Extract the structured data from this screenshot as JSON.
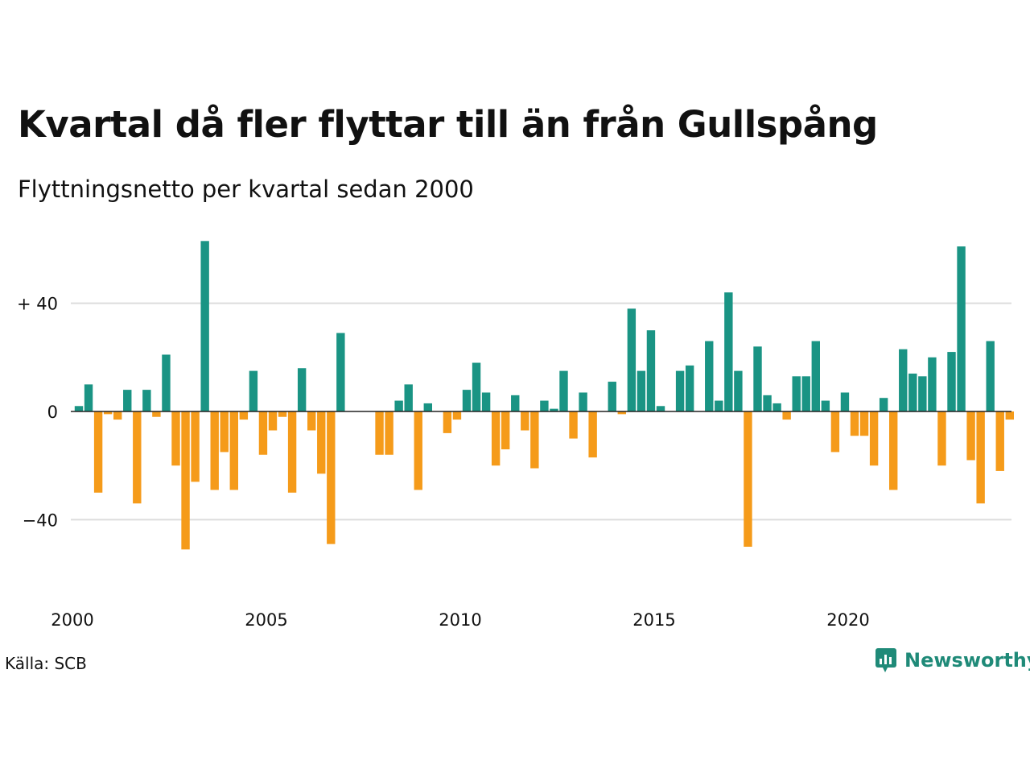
{
  "title": "Kvartal då fler flyttar till än från Gullspång",
  "subtitle": "Flyttningsnetto per kvartal sedan 2000",
  "source": "Källa: SCB",
  "brand": {
    "name": "Newsworthy",
    "icon": "newsworthy-logo-icon",
    "color": "#1f8a78"
  },
  "colors": {
    "positive": "#1a9484",
    "negative": "#f59b1a",
    "grid": "#dddddd",
    "zero_line": "#222222"
  },
  "chart_data": {
    "type": "bar",
    "x_unit": "quarter",
    "x_start": "2000Q1",
    "xlabel": "",
    "ylabel": "",
    "ylim": [
      -60,
      64
    ],
    "y_ticks": [
      {
        "value": 40,
        "label": "+ 40"
      },
      {
        "value": 0,
        "label": "0"
      },
      {
        "value": -40,
        "label": "−40"
      }
    ],
    "x_ticks": [
      {
        "label": "2000",
        "quarter_index": 0
      },
      {
        "label": "2005",
        "quarter_index": 20
      },
      {
        "label": "2010",
        "quarter_index": 40
      },
      {
        "label": "2015",
        "quarter_index": 60
      },
      {
        "label": "2020",
        "quarter_index": 80
      }
    ],
    "grid": true,
    "legend": "none",
    "values": [
      2,
      10,
      -30,
      -1,
      -3,
      8,
      -34,
      8,
      -2,
      21,
      -20,
      -51,
      -26,
      63,
      -29,
      -15,
      -29,
      -3,
      15,
      -16,
      -7,
      -2,
      -30,
      16,
      -7,
      -23,
      -49,
      29,
      0,
      0,
      0,
      -16,
      -16,
      4,
      10,
      -29,
      3,
      0,
      -8,
      -3,
      8,
      18,
      7,
      -20,
      -14,
      6,
      -7,
      -21,
      4,
      1,
      15,
      -10,
      7,
      -17,
      0,
      11,
      -1,
      38,
      15,
      30,
      2,
      0,
      15,
      17,
      0,
      26,
      4,
      44,
      15,
      -50,
      24,
      6,
      3,
      -3,
      13,
      13,
      26,
      4,
      -15,
      7,
      -9,
      -9,
      -20,
      5,
      -29,
      23,
      14,
      13,
      20,
      -20,
      22,
      61,
      -18,
      -34,
      26,
      -22,
      -3
    ]
  }
}
